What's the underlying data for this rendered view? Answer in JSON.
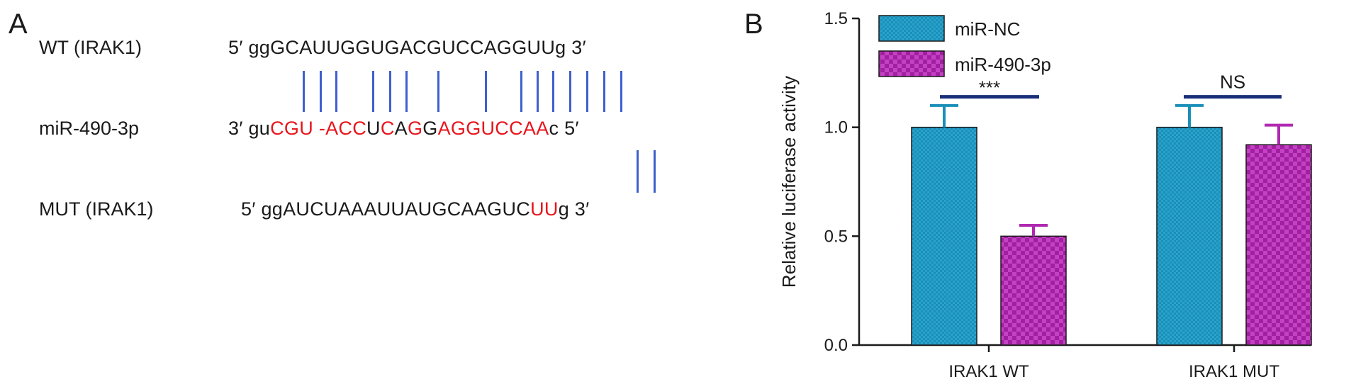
{
  "panel_a": {
    "letter": "A",
    "rows": [
      {
        "label": "WT (IRAK1)",
        "segments": [
          {
            "t": "5′ ggGCAUUGGUGACGUCCAGGUUg 3′",
            "c": "k"
          }
        ]
      },
      {
        "label": "miR-490-3p",
        "segments": [
          {
            "t": "3′ gu",
            "c": "k"
          },
          {
            "t": "CGU",
            "c": "r"
          },
          {
            "t": " -",
            "c": "r"
          },
          {
            "t": "ACC",
            "c": "r"
          },
          {
            "t": "U",
            "c": "k"
          },
          {
            "t": "C",
            "c": "r"
          },
          {
            "t": "A",
            "c": "k"
          },
          {
            "t": "G",
            "c": "r"
          },
          {
            "t": "G",
            "c": "k"
          },
          {
            "t": "AGGUCCAA",
            "c": "r"
          },
          {
            "t": "c 5′",
            "c": "k"
          }
        ]
      },
      {
        "label": "MUT (IRAK1)",
        "segments": [
          {
            "t": "5′ ggAUCUAAAUUAUGCAAGUC",
            "c": "k"
          },
          {
            "t": "UU",
            "c": "r"
          },
          {
            "t": "g 3′",
            "c": "k"
          }
        ]
      }
    ],
    "colors": {
      "pair_line": "#3f5fcf",
      "highlight": "#e8141c"
    }
  },
  "panel_b": {
    "letter": "B"
  },
  "chart_data": {
    "type": "bar",
    "categories": [
      "IRAK1 WT",
      "IRAK1 MUT"
    ],
    "series": [
      {
        "name": "miR-NC",
        "values": [
          1.0,
          1.0
        ],
        "errors": [
          0.1,
          0.1
        ],
        "color": "#1a8fb8"
      },
      {
        "name": "miR-490-3p",
        "values": [
          0.5,
          0.92
        ],
        "errors": [
          0.05,
          0.09
        ],
        "color": "#b02ab0"
      }
    ],
    "ylabel": "Relative luciferase activity",
    "xlabel": "",
    "title": "",
    "ylim": [
      0,
      1.5
    ],
    "yticks": [
      "0.0",
      "0.5",
      "1.0",
      "1.5"
    ],
    "significance": [
      "***",
      "NS"
    ],
    "legend_placement": "top-left",
    "grid": false
  }
}
